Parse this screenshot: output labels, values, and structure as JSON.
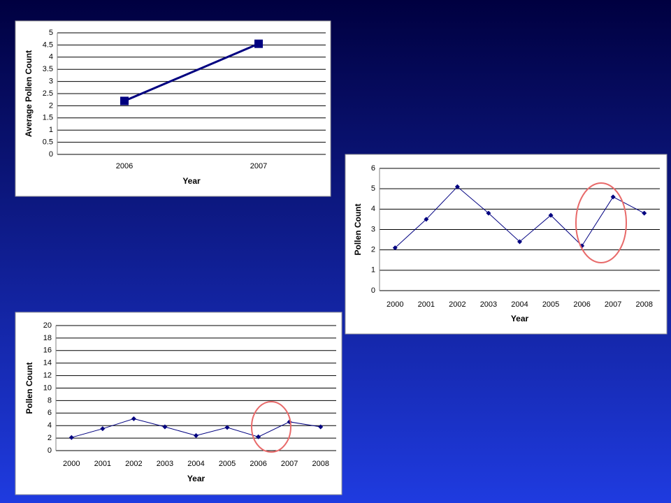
{
  "chart_data": [
    {
      "type": "line",
      "marker": "square",
      "color": "#000080",
      "grid": true,
      "y_label": "Average Pollen Count",
      "x_label": "Year",
      "categories": [
        "2006",
        "2007"
      ],
      "values": [
        2.2,
        4.55
      ],
      "ylim": [
        0,
        5
      ],
      "yticks": [
        0,
        0.5,
        1,
        1.5,
        2,
        2.5,
        3,
        3.5,
        4,
        4.5,
        5
      ]
    },
    {
      "type": "line",
      "marker": "diamond",
      "color": "#000080",
      "grid": true,
      "y_label": "Pollen Count",
      "x_label": "Year",
      "categories": [
        "2000",
        "2001",
        "2002",
        "2003",
        "2004",
        "2005",
        "2006",
        "2007",
        "2008"
      ],
      "values": [
        2.1,
        3.5,
        5.1,
        3.8,
        2.4,
        3.7,
        2.2,
        4.6,
        3.8
      ],
      "ylim": [
        0,
        6
      ],
      "yticks": [
        0,
        1,
        2,
        3,
        4,
        5,
        6
      ]
    },
    {
      "type": "line",
      "marker": "diamond",
      "color": "#000080",
      "grid": true,
      "y_label": "Pollen Count",
      "x_label": "Year",
      "categories": [
        "2000",
        "2001",
        "2002",
        "2003",
        "2004",
        "2005",
        "2006",
        "2007",
        "2008"
      ],
      "values": [
        2.1,
        3.5,
        5.1,
        3.8,
        2.4,
        3.7,
        2.2,
        4.6,
        3.8
      ],
      "ylim": [
        0,
        20
      ],
      "yticks": [
        0,
        2,
        4,
        6,
        8,
        10,
        12,
        14,
        16,
        18,
        20
      ]
    }
  ]
}
